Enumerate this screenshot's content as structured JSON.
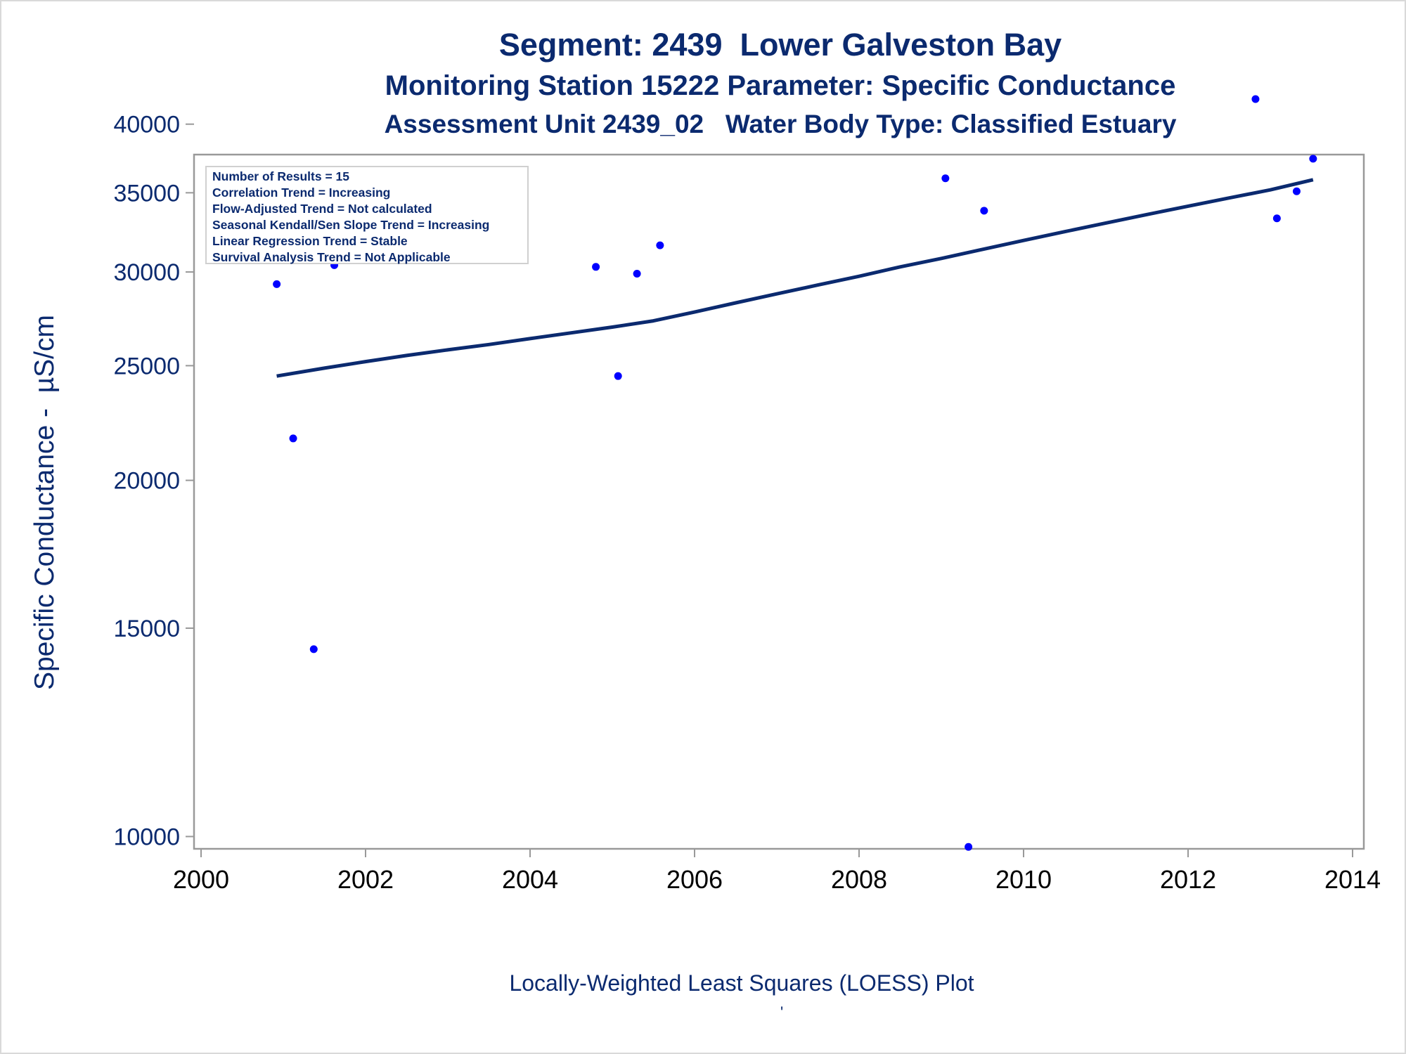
{
  "title": "Segment: 2439  Lower Galveston Bay",
  "subtitle1": "Monitoring Station 15222 Parameter: Specific Conductance",
  "subtitle2": "Assessment Unit 2439_02   Water Body Type: Classified Estuary",
  "caption": "Locally-Weighted Least Squares (LOESS) Plot",
  "caption_mark": "'",
  "stats": [
    "Number of Results = 15",
    "Correlation Trend = Increasing",
    "Flow-Adjusted Trend = Not calculated",
    "Seasonal Kendall/Sen Slope Trend = Increasing",
    "Linear Regression Trend = Stable",
    "Survival Analysis Trend = Not Applicable"
  ],
  "colors": {
    "text": "#0b2a6f",
    "points": "#0000ff",
    "line": "#0b2a6f",
    "axis": "#999999"
  },
  "chart_data": {
    "type": "scatter",
    "title": "Segment: 2439  Lower Galveston Bay",
    "ylabel": "Specific Conductance -  µS/cm",
    "xlabel": "Locally-Weighted Least Squares (LOESS) Plot",
    "yscale": "log",
    "xlim": [
      2000,
      2014
    ],
    "ylim": [
      9700,
      42500
    ],
    "xticks": [
      2000,
      2002,
      2004,
      2006,
      2008,
      2010,
      2012,
      2014
    ],
    "yticks": [
      10000,
      15000,
      20000,
      25000,
      30000,
      35000,
      40000
    ],
    "points": {
      "x": [
        2000.92,
        2001.12,
        2001.37,
        2001.62,
        2004.8,
        2005.07,
        2005.3,
        2005.58,
        2009.05,
        2009.33,
        2009.52,
        2012.82,
        2013.08,
        2013.32,
        2013.52
      ],
      "y": [
        29300,
        21700,
        14400,
        30400,
        30300,
        24500,
        29900,
        31600,
        36000,
        9800,
        33800,
        42000,
        33300,
        35100,
        37400
      ]
    },
    "loess": {
      "x": [
        2000.92,
        2001.5,
        2002.0,
        2002.5,
        2003.0,
        2003.5,
        2004.0,
        2004.5,
        2005.0,
        2005.5,
        2006.0,
        2006.5,
        2007.0,
        2007.5,
        2008.0,
        2008.5,
        2009.0,
        2009.5,
        2010.0,
        2010.5,
        2011.0,
        2011.5,
        2012.0,
        2012.5,
        2013.0,
        2013.52
      ],
      "y": [
        24500,
        24880,
        25200,
        25500,
        25780,
        26050,
        26350,
        26650,
        26950,
        27280,
        27750,
        28250,
        28750,
        29250,
        29750,
        30300,
        30800,
        31350,
        31900,
        32450,
        33000,
        33550,
        34100,
        34650,
        35200,
        35900
      ]
    }
  }
}
